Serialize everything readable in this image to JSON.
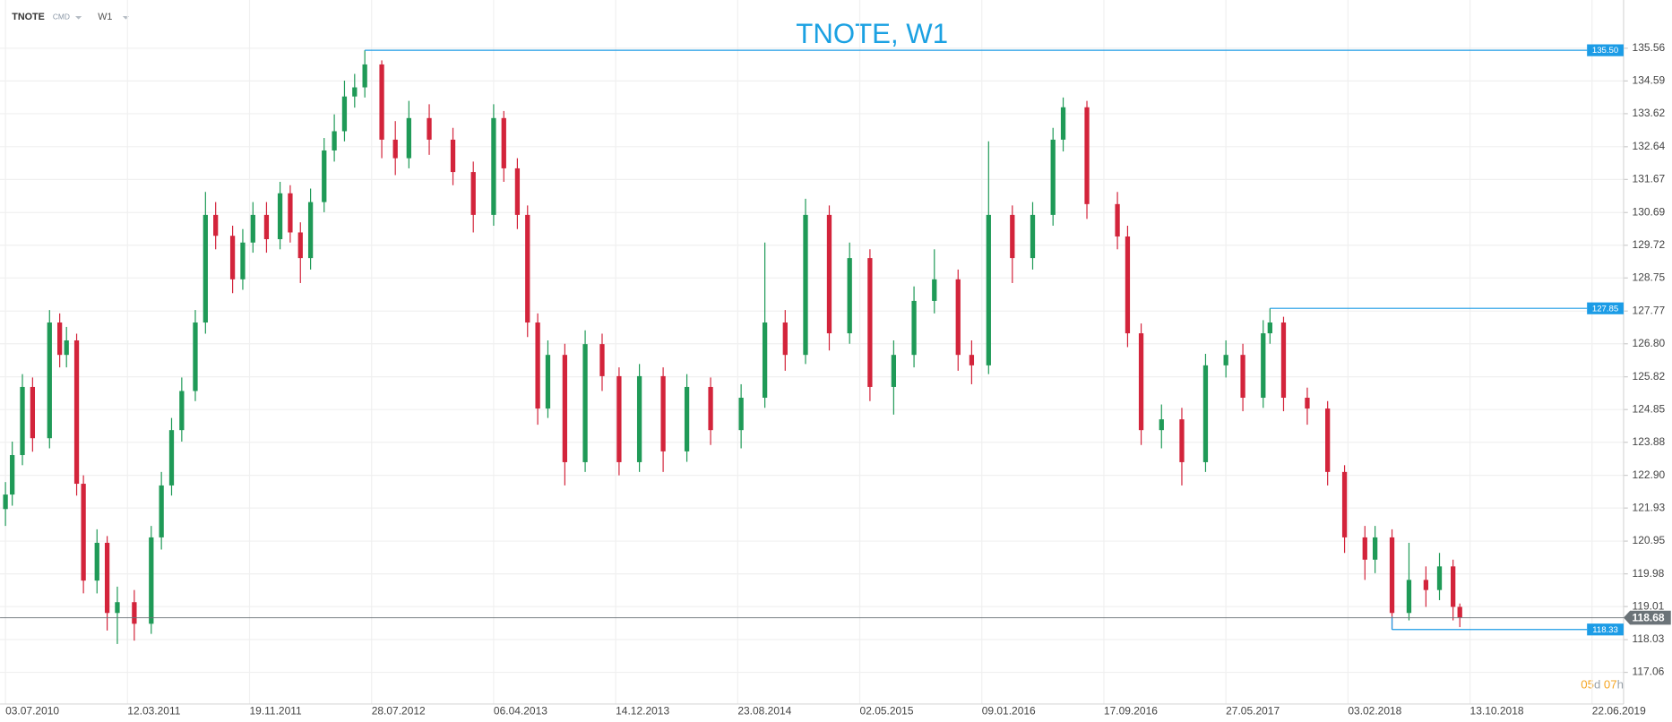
{
  "header": {
    "symbol": "TNOTE",
    "kind": "CMD",
    "interval": "W1"
  },
  "countdown": [
    "05",
    "d",
    "07",
    "h"
  ],
  "chart_data": {
    "type": "candlestick",
    "title": "TNOTE, W1",
    "up_color": "#1f9a57",
    "down_color": "#d3243b",
    "level_color": "#1c9ce6",
    "last_price_color": "#6b7378",
    "grid": true,
    "x": [
      0,
      2,
      5,
      8,
      13,
      16,
      18,
      21,
      23,
      27,
      30,
      33,
      38,
      43,
      46,
      49,
      52,
      56,
      59,
      62,
      67,
      70,
      73,
      77,
      81,
      84,
      87,
      90,
      94,
      97,
      100,
      103,
      106,
      111,
      115,
      119,
      125,
      132,
      138,
      144,
      147,
      151,
      154,
      157,
      160,
      165,
      171,
      176,
      181,
      187,
      194,
      201,
      208,
      217,
      224,
      230,
      236,
      243,
      249,
      255,
      262,
      268,
      274,
      281,
      285,
      290,
      297,
      303,
      309,
      312,
      319,
      328,
      331,
      335,
      341,
      347,
      354,
      360,
      365,
      371,
      373,
      377,
      384,
      390,
      395,
      401,
      404,
      409,
      414,
      419,
      423,
      427,
      429
    ],
    "open": [
      121.9,
      122.33,
      123.5,
      125.52,
      124.0,
      127.43,
      126.47,
      126.9,
      122.65,
      119.78,
      120.9,
      118.82,
      119.14,
      118.5,
      121.06,
      122.6,
      124.24,
      125.4,
      127.43,
      130.62,
      130.0,
      128.71,
      129.8,
      130.62,
      129.9,
      131.26,
      130.1,
      129.34,
      131.0,
      132.53,
      133.1,
      134.13,
      134.4,
      135.08,
      132.85,
      132.3,
      133.49,
      132.85,
      131.89,
      130.62,
      133.49,
      132.0,
      130.62,
      127.43,
      124.88,
      126.47,
      123.29,
      126.79,
      125.84,
      123.29,
      125.84,
      123.61,
      125.52,
      124.24,
      125.2,
      127.43,
      126.47,
      130.62,
      127.11,
      129.34,
      125.52,
      126.47,
      128.07,
      128.71,
      126.47,
      126.16,
      130.62,
      129.34,
      130.62,
      132.85,
      133.81,
      130.94,
      129.98,
      127.11,
      124.24,
      124.56,
      123.29,
      126.16,
      126.47,
      125.2,
      127.11,
      127.43,
      125.2,
      124.88,
      123.0,
      121.06,
      120.4,
      121.06,
      118.82,
      119.8,
      119.5,
      120.2,
      119.0
    ],
    "high": [
      122.7,
      123.9,
      125.9,
      125.8,
      127.8,
      127.7,
      127.3,
      127.1,
      122.9,
      121.3,
      121.1,
      119.6,
      119.5,
      121.4,
      123.0,
      124.6,
      125.8,
      127.8,
      131.3,
      131.0,
      130.3,
      130.2,
      131.0,
      131.0,
      131.6,
      131.5,
      130.4,
      131.4,
      132.9,
      133.6,
      134.6,
      134.8,
      135.5,
      135.2,
      133.4,
      134.0,
      133.9,
      133.2,
      132.2,
      133.9,
      133.7,
      132.3,
      130.9,
      127.7,
      126.9,
      126.8,
      127.2,
      127.1,
      126.1,
      126.2,
      126.1,
      125.9,
      125.8,
      125.6,
      129.8,
      127.8,
      131.1,
      130.9,
      129.8,
      129.6,
      126.9,
      128.5,
      129.6,
      129.0,
      126.9,
      132.8,
      130.9,
      131.0,
      133.2,
      134.1,
      134.0,
      131.3,
      130.3,
      127.4,
      125.0,
      124.9,
      126.5,
      126.9,
      126.8,
      127.5,
      127.85,
      127.6,
      125.5,
      125.1,
      123.2,
      121.4,
      121.4,
      121.3,
      120.9,
      120.2,
      120.6,
      120.4,
      119.1
    ],
    "low": [
      121.4,
      122.0,
      123.2,
      123.6,
      123.7,
      126.1,
      126.1,
      122.3,
      119.4,
      119.4,
      118.3,
      117.9,
      118.0,
      118.2,
      120.7,
      122.3,
      123.9,
      125.1,
      127.1,
      129.6,
      128.3,
      128.4,
      129.5,
      129.5,
      129.6,
      129.8,
      128.6,
      129.0,
      130.7,
      132.2,
      132.8,
      133.8,
      134.1,
      132.3,
      131.8,
      132.0,
      132.4,
      131.5,
      130.1,
      130.3,
      131.6,
      130.2,
      127.0,
      124.4,
      124.6,
      122.6,
      123.0,
      125.4,
      122.9,
      123.0,
      123.0,
      123.3,
      123.8,
      123.7,
      124.9,
      126.0,
      126.2,
      126.6,
      126.8,
      125.1,
      124.7,
      126.1,
      127.7,
      126.0,
      125.6,
      125.9,
      128.6,
      129.0,
      130.3,
      132.5,
      130.5,
      129.6,
      126.7,
      123.8,
      123.7,
      122.6,
      123.0,
      125.8,
      124.8,
      124.9,
      126.8,
      124.8,
      124.4,
      122.6,
      120.6,
      119.8,
      120.0,
      118.33,
      118.6,
      119.0,
      119.2,
      118.6,
      118.4
    ],
    "close": [
      122.33,
      123.5,
      125.52,
      124.0,
      127.43,
      126.47,
      126.9,
      122.65,
      119.78,
      120.9,
      118.82,
      119.14,
      118.5,
      121.06,
      122.6,
      124.24,
      125.4,
      127.43,
      130.62,
      130.0,
      128.71,
      129.8,
      130.62,
      129.9,
      131.26,
      130.1,
      129.34,
      131.0,
      132.53,
      133.1,
      134.13,
      134.4,
      135.08,
      132.85,
      132.3,
      133.49,
      132.85,
      131.89,
      130.62,
      133.49,
      132.0,
      130.62,
      127.43,
      124.88,
      126.47,
      123.29,
      126.79,
      125.84,
      123.29,
      125.84,
      123.61,
      125.52,
      124.24,
      125.2,
      127.43,
      126.47,
      130.62,
      127.11,
      129.34,
      125.52,
      126.47,
      128.07,
      128.71,
      126.47,
      126.16,
      130.62,
      129.34,
      130.62,
      132.85,
      133.81,
      130.94,
      129.98,
      127.11,
      124.24,
      124.56,
      123.29,
      126.16,
      126.47,
      125.2,
      127.11,
      127.43,
      125.2,
      124.88,
      123.0,
      121.06,
      120.4,
      121.06,
      118.82,
      119.8,
      119.5,
      120.2,
      119.0,
      118.68
    ],
    "xlim": [
      -1.6,
      477.3
    ],
    "xticks": [
      {
        "value": 0,
        "label": "03.07.2010"
      },
      {
        "value": 36,
        "label": "12.03.2011"
      },
      {
        "value": 72,
        "label": "19.11.2011"
      },
      {
        "value": 108,
        "label": "28.07.2012"
      },
      {
        "value": 144,
        "label": "06.04.2013"
      },
      {
        "value": 180,
        "label": "14.12.2013"
      },
      {
        "value": 216,
        "label": "23.08.2014"
      },
      {
        "value": 252,
        "label": "02.05.2015"
      },
      {
        "value": 288,
        "label": "09.01.2016"
      },
      {
        "value": 324,
        "label": "17.09.2016"
      },
      {
        "value": 360,
        "label": "27.05.2017"
      },
      {
        "value": 396,
        "label": "03.02.2018"
      },
      {
        "value": 432,
        "label": "13.10.2018"
      },
      {
        "value": 468,
        "label": "22.06.2019"
      }
    ],
    "ylim": [
      116.12,
      136.99
    ],
    "yticks": [
      135.56,
      134.59,
      133.62,
      132.64,
      131.67,
      130.69,
      129.72,
      128.75,
      127.77,
      {
        "value": 126.8,
        "label": "126.80"
      },
      125.82,
      124.85,
      123.88,
      {
        "value": 122.9,
        "label": "122.90"
      },
      121.93,
      120.95,
      119.98,
      119.01,
      118.03,
      117.06
    ],
    "levels": [
      {
        "value": 135.5,
        "label": "135.50"
      },
      127.85,
      118.33
    ],
    "last_price": 118.68
  }
}
